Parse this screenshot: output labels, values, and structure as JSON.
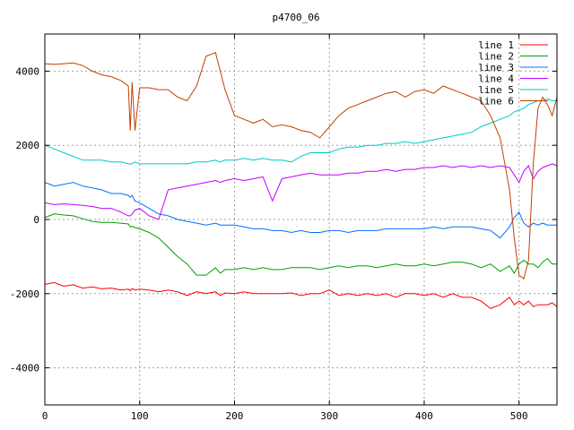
{
  "chart_data": {
    "type": "line",
    "title": "p4700_06",
    "xlabel": "",
    "ylabel": "",
    "xlim": [
      0,
      540
    ],
    "ylim": [
      -5000,
      5000
    ],
    "x_ticks": [
      0,
      100,
      200,
      300,
      400,
      500
    ],
    "y_ticks": [
      -4000,
      -2000,
      0,
      2000,
      4000
    ],
    "grid": true,
    "legend_position": "top-right",
    "x": [
      0,
      10,
      20,
      30,
      40,
      50,
      60,
      70,
      80,
      88,
      90,
      92,
      95,
      100,
      110,
      120,
      130,
      140,
      150,
      160,
      170,
      180,
      185,
      190,
      200,
      210,
      220,
      230,
      240,
      250,
      260,
      270,
      280,
      290,
      300,
      310,
      320,
      330,
      340,
      350,
      360,
      370,
      380,
      390,
      400,
      410,
      420,
      430,
      440,
      450,
      460,
      470,
      480,
      490,
      495,
      500,
      505,
      510,
      515,
      520,
      525,
      530,
      535,
      540
    ],
    "series": [
      {
        "name": "line 1",
        "color": "#ff0000",
        "values": [
          -1750,
          -1700,
          -1800,
          -1760,
          -1850,
          -1820,
          -1870,
          -1850,
          -1900,
          -1880,
          -1920,
          -1860,
          -1900,
          -1880,
          -1900,
          -1950,
          -1900,
          -1950,
          -2050,
          -1950,
          -2000,
          -1950,
          -2050,
          -1980,
          -2000,
          -1950,
          -2000,
          -2000,
          -2000,
          -2000,
          -1980,
          -2050,
          -2000,
          -2000,
          -1900,
          -2050,
          -2000,
          -2050,
          -2000,
          -2050,
          -2000,
          -2100,
          -2000,
          -2000,
          -2050,
          -2000,
          -2100,
          -2000,
          -2100,
          -2100,
          -2200,
          -2400,
          -2300,
          -2100,
          -2300,
          -2200,
          -2300,
          -2200,
          -2350,
          -2300,
          -2300,
          -2300,
          -2250,
          -2350
        ]
      },
      {
        "name": "line 2",
        "color": "#00a000",
        "values": [
          50,
          150,
          120,
          100,
          20,
          -50,
          -80,
          -80,
          -100,
          -120,
          -200,
          -180,
          -220,
          -250,
          -350,
          -500,
          -750,
          -1000,
          -1200,
          -1500,
          -1500,
          -1300,
          -1450,
          -1350,
          -1350,
          -1300,
          -1350,
          -1300,
          -1350,
          -1350,
          -1300,
          -1300,
          -1300,
          -1350,
          -1300,
          -1250,
          -1300,
          -1250,
          -1250,
          -1300,
          -1250,
          -1200,
          -1250,
          -1250,
          -1200,
          -1250,
          -1200,
          -1150,
          -1150,
          -1200,
          -1300,
          -1200,
          -1400,
          -1250,
          -1450,
          -1200,
          -1100,
          -1200,
          -1200,
          -1300,
          -1150,
          -1050,
          -1200,
          -1200
        ]
      },
      {
        "name": "line 3",
        "color": "#0070ff",
        "values": [
          1000,
          900,
          950,
          1000,
          900,
          850,
          800,
          700,
          700,
          650,
          600,
          650,
          500,
          450,
          300,
          150,
          100,
          0,
          -50,
          -100,
          -150,
          -100,
          -150,
          -150,
          -150,
          -200,
          -250,
          -250,
          -300,
          -300,
          -350,
          -300,
          -350,
          -350,
          -300,
          -300,
          -350,
          -300,
          -300,
          -300,
          -250,
          -250,
          -250,
          -250,
          -250,
          -200,
          -250,
          -200,
          -200,
          -200,
          -250,
          -300,
          -500,
          -200,
          50,
          200,
          -100,
          -200,
          -100,
          -150,
          -100,
          -150,
          -150,
          -150
        ]
      },
      {
        "name": "line 4",
        "color": "#c000ff",
        "values": [
          450,
          400,
          420,
          400,
          380,
          350,
          300,
          300,
          200,
          100,
          100,
          150,
          250,
          300,
          100,
          0,
          800,
          850,
          900,
          950,
          1000,
          1050,
          1000,
          1050,
          1100,
          1050,
          1100,
          1150,
          500,
          1100,
          1150,
          1200,
          1250,
          1200,
          1200,
          1200,
          1250,
          1250,
          1300,
          1300,
          1350,
          1300,
          1350,
          1350,
          1400,
          1400,
          1450,
          1400,
          1450,
          1400,
          1450,
          1400,
          1450,
          1400,
          1200,
          1000,
          1300,
          1450,
          1100,
          1300,
          1400,
          1450,
          1500,
          1450
        ]
      },
      {
        "name": "line 5",
        "color": "#00c8c8",
        "values": [
          2000,
          1900,
          1800,
          1700,
          1600,
          1600,
          1600,
          1550,
          1550,
          1500,
          1500,
          1500,
          1550,
          1500,
          1500,
          1500,
          1500,
          1500,
          1500,
          1550,
          1550,
          1600,
          1550,
          1600,
          1600,
          1650,
          1600,
          1650,
          1600,
          1600,
          1550,
          1700,
          1800,
          1800,
          1800,
          1900,
          1950,
          1950,
          2000,
          2000,
          2050,
          2050,
          2100,
          2050,
          2100,
          2150,
          2200,
          2250,
          2300,
          2350,
          2500,
          2600,
          2700,
          2800,
          2900,
          2950,
          3000,
          3100,
          3150,
          3200,
          3200,
          3250,
          3200,
          3200
        ]
      },
      {
        "name": "line 6",
        "color": "#c04000",
        "values": [
          4200,
          4180,
          4200,
          4220,
          4150,
          4000,
          3900,
          3850,
          3750,
          3600,
          2400,
          3700,
          2400,
          3550,
          3550,
          3500,
          3500,
          3300,
          3200,
          3600,
          4400,
          4500,
          4000,
          3500,
          2800,
          2700,
          2600,
          2700,
          2500,
          2550,
          2500,
          2400,
          2350,
          2200,
          2500,
          2800,
          3000,
          3100,
          3200,
          3300,
          3400,
          3450,
          3300,
          3450,
          3500,
          3400,
          3600,
          3500,
          3400,
          3300,
          3200,
          2800,
          2200,
          800,
          -500,
          -1500,
          -1600,
          -1100,
          1500,
          3000,
          3300,
          3100,
          2800,
          3300
        ]
      }
    ]
  }
}
